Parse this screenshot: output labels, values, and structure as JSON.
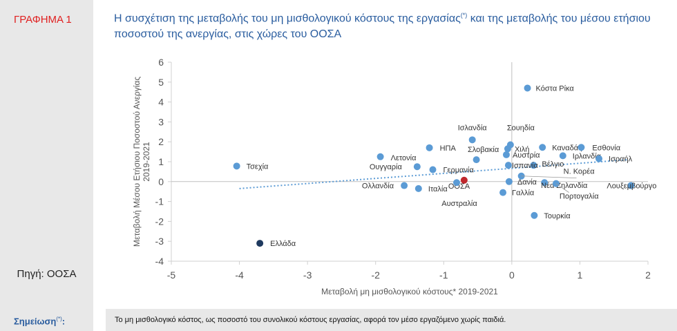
{
  "figure_label": "ΓΡΑΦΗΜΑ 1",
  "title_main": "Η συσχέτιση της μεταβολής του μη μισθολογικού κόστους της εργασίας",
  "title_sup": "(*)",
  "title_rest": " και της μεταβολής του μέσου ετήσιου ποσοστού της ανεργίας, στις χώρες του ΟΟΣΑ",
  "source": "Πηγή: ΟΟΣΑ",
  "note_label": "Σημείωση",
  "note_sup": "(*)",
  "note_colon": ":",
  "note_text": "Το μη μισθολογικό κόστος, ως ποσοστό του συνολικού κόστους εργασίας, αφορά τον μέσο εργαζόμενο χωρίς παιδιά.",
  "colors": {
    "point": "#5b9bd5",
    "greece": "#1f3a5f",
    "oecd": "#c0282d",
    "trend": "#5b9bd5",
    "title": "#2a5d9f"
  },
  "chart_data": {
    "type": "scatter",
    "xlabel": "Μεταβολή μη μισθολογικού κόστους* 2019-2021",
    "ylabel": "Μεταβολή Μέσου Ετήσιου Ποσοστού Ανεργίας 2019-2021",
    "xlim": [
      -5,
      2
    ],
    "ylim": [
      -4,
      6
    ],
    "xticks": [
      -5,
      -4,
      -3,
      -2,
      -1,
      0,
      1,
      2
    ],
    "yticks": [
      -4,
      -3,
      -2,
      -1,
      0,
      1,
      2,
      3,
      4,
      5,
      6
    ],
    "trendline": {
      "x": [
        -4.0,
        1.7
      ],
      "y": [
        -0.35,
        1.1
      ]
    },
    "points": [
      {
        "x": 0.23,
        "y": 4.7,
        "label": "Κόστα Ρίκα"
      },
      {
        "x": -0.58,
        "y": 2.1,
        "label": "Ισλανδία"
      },
      {
        "x": -0.02,
        "y": 1.85,
        "label": "Σουηδία"
      },
      {
        "x": -0.06,
        "y": 1.65,
        "label": "Χιλή"
      },
      {
        "x": -0.08,
        "y": 1.35,
        "label": "Αυστρία"
      },
      {
        "x": 0.45,
        "y": 1.72,
        "label": "Καναδάς"
      },
      {
        "x": 1.02,
        "y": 1.72,
        "label": "Εσθονία"
      },
      {
        "x": 0.75,
        "y": 1.3,
        "label": "Ιρλανδία"
      },
      {
        "x": 1.28,
        "y": 1.15,
        "label": "Ισραήλ"
      },
      {
        "x": 0.32,
        "y": 0.82,
        "label": "Βέλγιο"
      },
      {
        "x": -0.05,
        "y": 0.82,
        "label": "Ισπανία"
      },
      {
        "x": 0.14,
        "y": 0.28,
        "label": "Ν. Κορέα"
      },
      {
        "x": -0.04,
        "y": 0.0,
        "label": "Δανία"
      },
      {
        "x": 0.48,
        "y": -0.05,
        "label": "Νέα Ζηλανδία"
      },
      {
        "x": 1.75,
        "y": -0.2,
        "label": "Λουξεμβούργο"
      },
      {
        "x": 0.65,
        "y": -0.1,
        "label": "Πορτογαλία"
      },
      {
        "x": -0.13,
        "y": -0.55,
        "label": "Γαλλία"
      },
      {
        "x": 0.33,
        "y": -1.7,
        "label": "Τουρκία"
      },
      {
        "x": -1.21,
        "y": 1.7,
        "label": "ΗΠΑ"
      },
      {
        "x": -0.52,
        "y": 1.1,
        "label": "Σλοβακία"
      },
      {
        "x": -1.93,
        "y": 1.25,
        "label": "Λετονία"
      },
      {
        "x": -1.39,
        "y": 0.75,
        "label": "Ουγγαρία"
      },
      {
        "x": -1.16,
        "y": 0.6,
        "label": "Γερμανία"
      },
      {
        "x": -0.7,
        "y": 0.07,
        "label": "ΟΟΣΑ"
      },
      {
        "x": -1.58,
        "y": -0.2,
        "label": "Ολλανδία"
      },
      {
        "x": -1.37,
        "y": -0.35,
        "label": "Ιταλία"
      },
      {
        "x": -0.81,
        "y": -0.05,
        "label": "Αυστραλία"
      },
      {
        "x": -4.04,
        "y": 0.78,
        "label": "Τσεχία"
      },
      {
        "x": -3.7,
        "y": -3.1,
        "label": "Ελλάδα"
      }
    ]
  }
}
